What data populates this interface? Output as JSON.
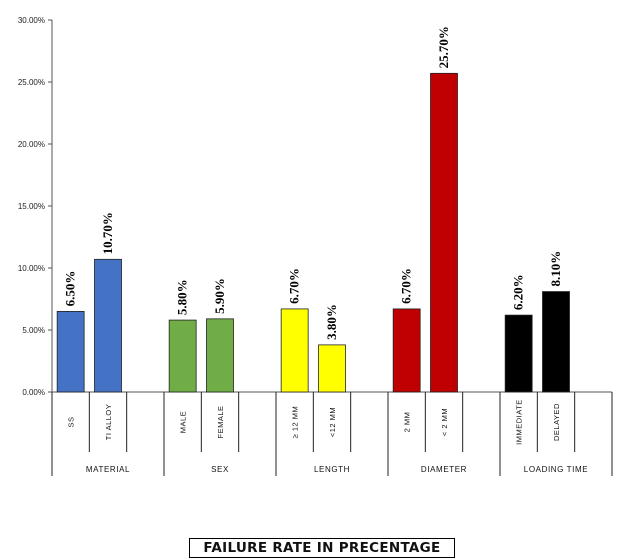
{
  "chart_data": {
    "type": "bar",
    "title": "FAILURE RATE IN PRECENTAGE",
    "ylim": [
      0,
      30
    ],
    "yticks": [
      "0.00%",
      "5.00%",
      "10.00%",
      "15.00%",
      "20.00%",
      "25.00%",
      "30.00%"
    ],
    "grid": false,
    "legend": "none",
    "groups": [
      {
        "name": "MATERIAL",
        "categories": [
          {
            "label": "SS",
            "value": 6.5,
            "data_label": "6.50%",
            "color": "#4472C4"
          },
          {
            "label": "TI ALLOY",
            "value": 10.7,
            "data_label": "10.70%",
            "color": "#4472C4"
          }
        ]
      },
      {
        "name": "SEX",
        "categories": [
          {
            "label": "MALE",
            "value": 5.8,
            "data_label": "5.80%",
            "color": "#70AD47"
          },
          {
            "label": "FEMALE",
            "value": 5.9,
            "data_label": "5.90%",
            "color": "#70AD47"
          }
        ]
      },
      {
        "name": "LENGTH",
        "categories": [
          {
            "label": "≥ 12 MM",
            "value": 6.7,
            "data_label": "6.70%",
            "color": "#FFFF00"
          },
          {
            "label": "<12 MM",
            "value": 3.8,
            "data_label": "3.80%",
            "color": "#FFFF00"
          }
        ]
      },
      {
        "name": "DIAMETER",
        "categories": [
          {
            "label": "2 MM",
            "value": 6.7,
            "data_label": "6.70%",
            "color": "#C00000"
          },
          {
            "label": "< 2 MM",
            "value": 25.7,
            "data_label": "25.70%",
            "color": "#C00000"
          }
        ]
      },
      {
        "name": "LOADING TIME",
        "categories": [
          {
            "label": "IMMEDIATE",
            "value": 6.2,
            "data_label": "6.20%",
            "color": "#000000"
          },
          {
            "label": "DELAYED",
            "value": 8.1,
            "data_label": "8.10%",
            "color": "#000000"
          }
        ]
      }
    ]
  }
}
